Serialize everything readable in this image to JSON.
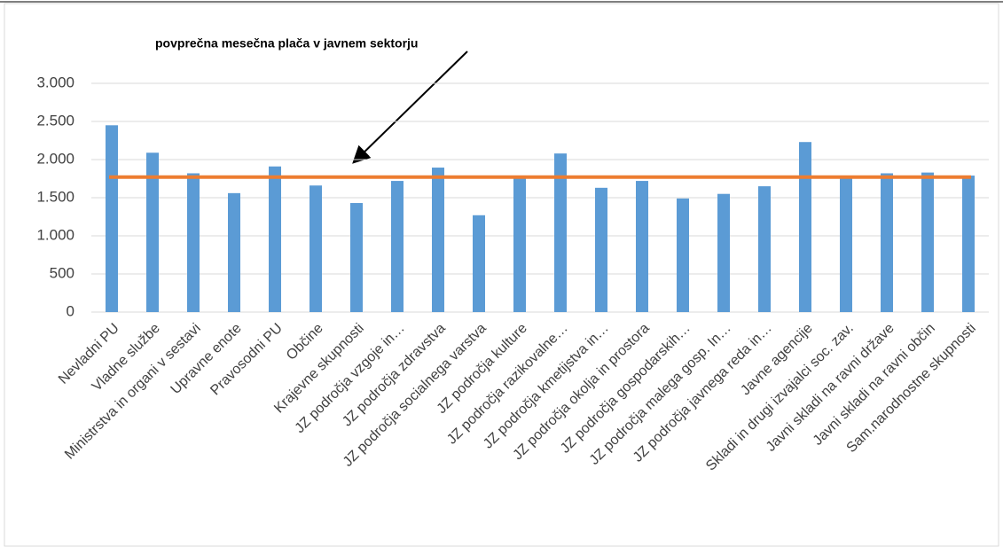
{
  "chart_data": {
    "type": "bar",
    "annotation": "povprečna mesečna plača v javnem sektorju",
    "categories": [
      "Nevladni PU",
      "Vladne službe",
      "Ministrstva in organi v sestavi",
      "Upravne enote",
      "Pravosodni PU",
      "Občine",
      "Krajevne skupnosti",
      "JZ področja vzgoje in…",
      "JZ področja zdravstva",
      "JZ področja socialnega varstva",
      "JZ področja kulture",
      "JZ področja razikovalne…",
      "JZ področja kmetijstva in…",
      "JZ področja okolja in prostora",
      "JZ področja gospodarskih…",
      "JZ področja malega gosp. In…",
      "JZ področja javnega reda in…",
      "Javne agencije",
      "Skladi in drugi izvajalci soc. zav.",
      "Javni skladi na ravni države",
      "Javni skladi na ravni občin",
      "Sam.narodnostne skupnosti"
    ],
    "values": [
      2450,
      2090,
      1820,
      1560,
      1910,
      1660,
      1430,
      1720,
      1895,
      1270,
      1750,
      2080,
      1630,
      1720,
      1490,
      1550,
      1650,
      2230,
      1750,
      1820,
      1830,
      1790
    ],
    "color": "#5b9bd5",
    "average_line": 1770,
    "average_color": "#ed7d31",
    "ylim": [
      0,
      3000
    ],
    "yticks": [
      0,
      500,
      {
        "value": 1000,
        "label": "1.000"
      },
      {
        "value": 1500,
        "label": "1.500"
      },
      {
        "value": 2000,
        "label": "2.000"
      },
      {
        "value": 2500,
        "label": "2.500"
      },
      {
        "value": 3000,
        "label": "3.000"
      }
    ],
    "grid": true
  }
}
